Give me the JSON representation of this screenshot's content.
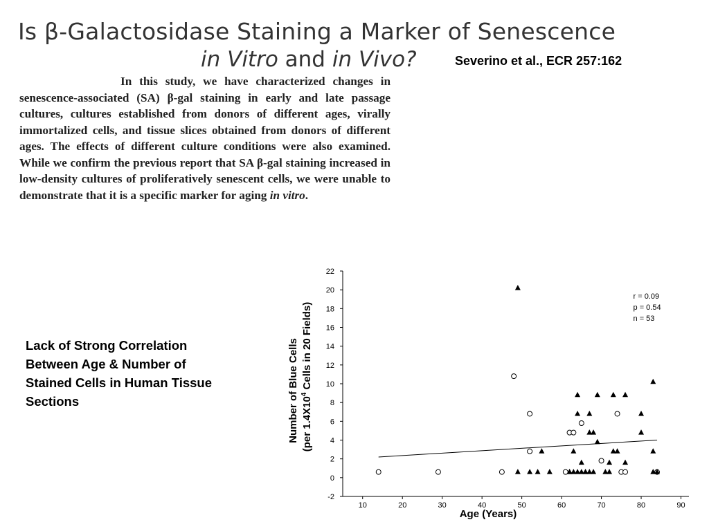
{
  "header": {
    "title_line1": "Is β-Galactosidase Staining a Marker of Senescence",
    "title_line2_part1": "in Vitro",
    "title_line2_part2": " and ",
    "title_line2_part3": "in Vivo?",
    "citation": "Severino et al., ECR 257:162"
  },
  "abstract": {
    "text": "In this study, we have characterized changes in senescence-associated (SA) β-gal staining in early and late passage cultures, cultures established from donors of different ages, virally immortalized cells, and tissue slices obtained from donors of different ages. The effects of different culture conditions were also examined. While we confirm the previous report that SA β-gal staining increased in low-density cultures of proliferatively senescent cells, we were unable to demonstrate that it is a specific marker for aging ",
    "italic_end": "in vitro",
    "end_punct": "."
  },
  "caption": "Lack of Strong Correlation Between Age & Number of Stained Cells in Human Tissue Sections",
  "chart_data": {
    "type": "scatter",
    "xlabel": "Age (Years)",
    "ylabel_line1": "Number of Blue Cells",
    "ylabel_line2_pre": "(per 1.4X10",
    "ylabel_line2_sup": "4",
    "ylabel_line2_post": " Cells in 20 Fields)",
    "xlim": [
      5,
      92
    ],
    "ylim": [
      -2,
      22
    ],
    "x_ticks": [
      10,
      20,
      30,
      40,
      50,
      60,
      70,
      80,
      90
    ],
    "y_ticks": [
      -2,
      0,
      2,
      4,
      6,
      8,
      10,
      12,
      14,
      16,
      18,
      20,
      22
    ],
    "stats": [
      "r = 0.09",
      "p = 0.54",
      "n = 53"
    ],
    "regression": {
      "x": [
        14,
        84
      ],
      "y": [
        2.2,
        4.0
      ]
    },
    "series": [
      {
        "marker": "open-circle",
        "points": [
          [
            14,
            0.6
          ],
          [
            29,
            0.6
          ],
          [
            45,
            0.6
          ],
          [
            48,
            10.8
          ],
          [
            52,
            6.8
          ],
          [
            52,
            2.8
          ],
          [
            61,
            0.6
          ],
          [
            62,
            4.8
          ],
          [
            63,
            4.8
          ],
          [
            65,
            5.8
          ],
          [
            70,
            1.8
          ],
          [
            74,
            6.8
          ],
          [
            75,
            0.6
          ],
          [
            76,
            0.6
          ],
          [
            84,
            0.6
          ]
        ]
      },
      {
        "marker": "filled-triangle",
        "points": [
          [
            49,
            20.2
          ],
          [
            49,
            0.6
          ],
          [
            52,
            0.6
          ],
          [
            54,
            0.6
          ],
          [
            55,
            2.8
          ],
          [
            62,
            0.6
          ],
          [
            63,
            0.6
          ],
          [
            63,
            2.8
          ],
          [
            64,
            8.8
          ],
          [
            64,
            6.8
          ],
          [
            64,
            0.6
          ],
          [
            65,
            0.6
          ],
          [
            65,
            1.6
          ],
          [
            66,
            0.6
          ],
          [
            67,
            0.6
          ],
          [
            67,
            6.8
          ],
          [
            67,
            4.8
          ],
          [
            68,
            0.6
          ],
          [
            68,
            4.8
          ],
          [
            69,
            8.8
          ],
          [
            69,
            3.8
          ],
          [
            71,
            0.6
          ],
          [
            72,
            0.6
          ],
          [
            72,
            1.6
          ],
          [
            73,
            8.8
          ],
          [
            73,
            2.8
          ],
          [
            74,
            2.8
          ],
          [
            76,
            8.8
          ],
          [
            76,
            1.6
          ],
          [
            80,
            6.8
          ],
          [
            80,
            4.8
          ],
          [
            83,
            10.2
          ],
          [
            83,
            2.8
          ],
          [
            83,
            0.6
          ],
          [
            84,
            0.6
          ],
          [
            57,
            0.6
          ],
          [
            66,
            0.6
          ],
          [
            62,
            0.6
          ]
        ]
      }
    ]
  }
}
